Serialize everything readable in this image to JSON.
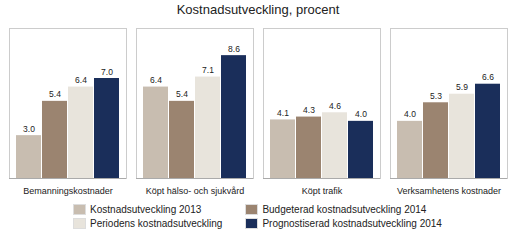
{
  "chart_data": {
    "type": "bar",
    "title": "Kostnadsutveckling, procent",
    "categories": [
      "Bemanningskostnader",
      "Köpt hälso- och sjukvård",
      "Köpt trafik",
      "Verksamhetens kostnader"
    ],
    "series": [
      {
        "name": "Kostnadsutveckling 2013",
        "color": "#c8bdb0",
        "values": [
          3.0,
          6.4,
          4.1,
          4.0
        ],
        "value_labels": [
          "3.0",
          "6.4",
          "4.1",
          "4.0"
        ]
      },
      {
        "name": "Budgeterad kostnadsutveckling 2014",
        "color": "#9b8470",
        "values": [
          5.4,
          5.4,
          4.3,
          5.3
        ],
        "value_labels": [
          "5.4",
          "5.4",
          "4.3",
          "5.3"
        ]
      },
      {
        "name": "Periodens kostnadsutveckling",
        "color": "#e8e4dc",
        "values": [
          6.4,
          7.1,
          4.6,
          5.9
        ],
        "value_labels": [
          "6.4",
          "7.1",
          "4.6",
          "5.9"
        ]
      },
      {
        "name": "Prognostiserad kostnadsutveckling 2014",
        "color": "#1a2e5a",
        "values": [
          7.0,
          8.6,
          4.0,
          6.6
        ],
        "value_labels": [
          "7.0",
          "8.6",
          "4.0",
          "6.6"
        ]
      }
    ],
    "ylim": [
      0,
      10.5
    ],
    "tick_labels": "x",
    "data_labels": true,
    "legend": "bottom",
    "grid": false
  }
}
